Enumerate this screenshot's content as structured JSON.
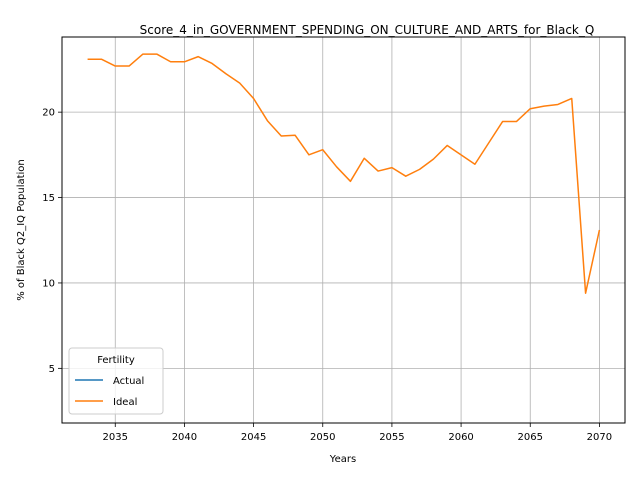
{
  "chart_data": {
    "type": "line",
    "title": "Score_4_in_GOVERNMENT_SPENDING_ON_CULTURE_AND_ARTS_for_Black_Q",
    "xlabel": "Years",
    "ylabel": "% of Black Q2_IQ Population",
    "xlim": [
      2031.15,
      2071.85
    ],
    "ylim": [
      1.8,
      24.4
    ],
    "xticks": [
      2035,
      2040,
      2045,
      2050,
      2055,
      2060,
      2065,
      2070
    ],
    "yticks": [
      5,
      10,
      15,
      20
    ],
    "grid": true,
    "legend": {
      "title": "Fertility",
      "placement": "lower-left"
    },
    "series": [
      {
        "name": "Actual",
        "color": "#1f77b4",
        "x": [],
        "y": []
      },
      {
        "name": "Ideal",
        "color": "#ff7f0e",
        "x": [
          2033,
          2034,
          2035,
          2036,
          2037,
          2038,
          2039,
          2040,
          2041,
          2042,
          2043,
          2044,
          2045,
          2046,
          2047,
          2048,
          2049,
          2050,
          2051,
          2052,
          2053,
          2054,
          2055,
          2056,
          2057,
          2058,
          2059,
          2060,
          2061,
          2062,
          2063,
          2064,
          2065,
          2066,
          2067,
          2068,
          2069,
          2070
        ],
        "y": [
          23.1,
          23.1,
          22.7,
          22.7,
          23.4,
          23.4,
          22.95,
          22.95,
          23.25,
          22.85,
          22.25,
          21.7,
          20.8,
          19.5,
          18.6,
          18.65,
          17.5,
          17.8,
          16.8,
          15.95,
          17.3,
          16.55,
          16.75,
          16.25,
          16.65,
          17.25,
          18.05,
          17.5,
          16.95,
          18.2,
          19.45,
          19.45,
          20.2,
          20.35,
          20.45,
          20.8,
          9.4,
          13.1
        ]
      }
    ]
  }
}
